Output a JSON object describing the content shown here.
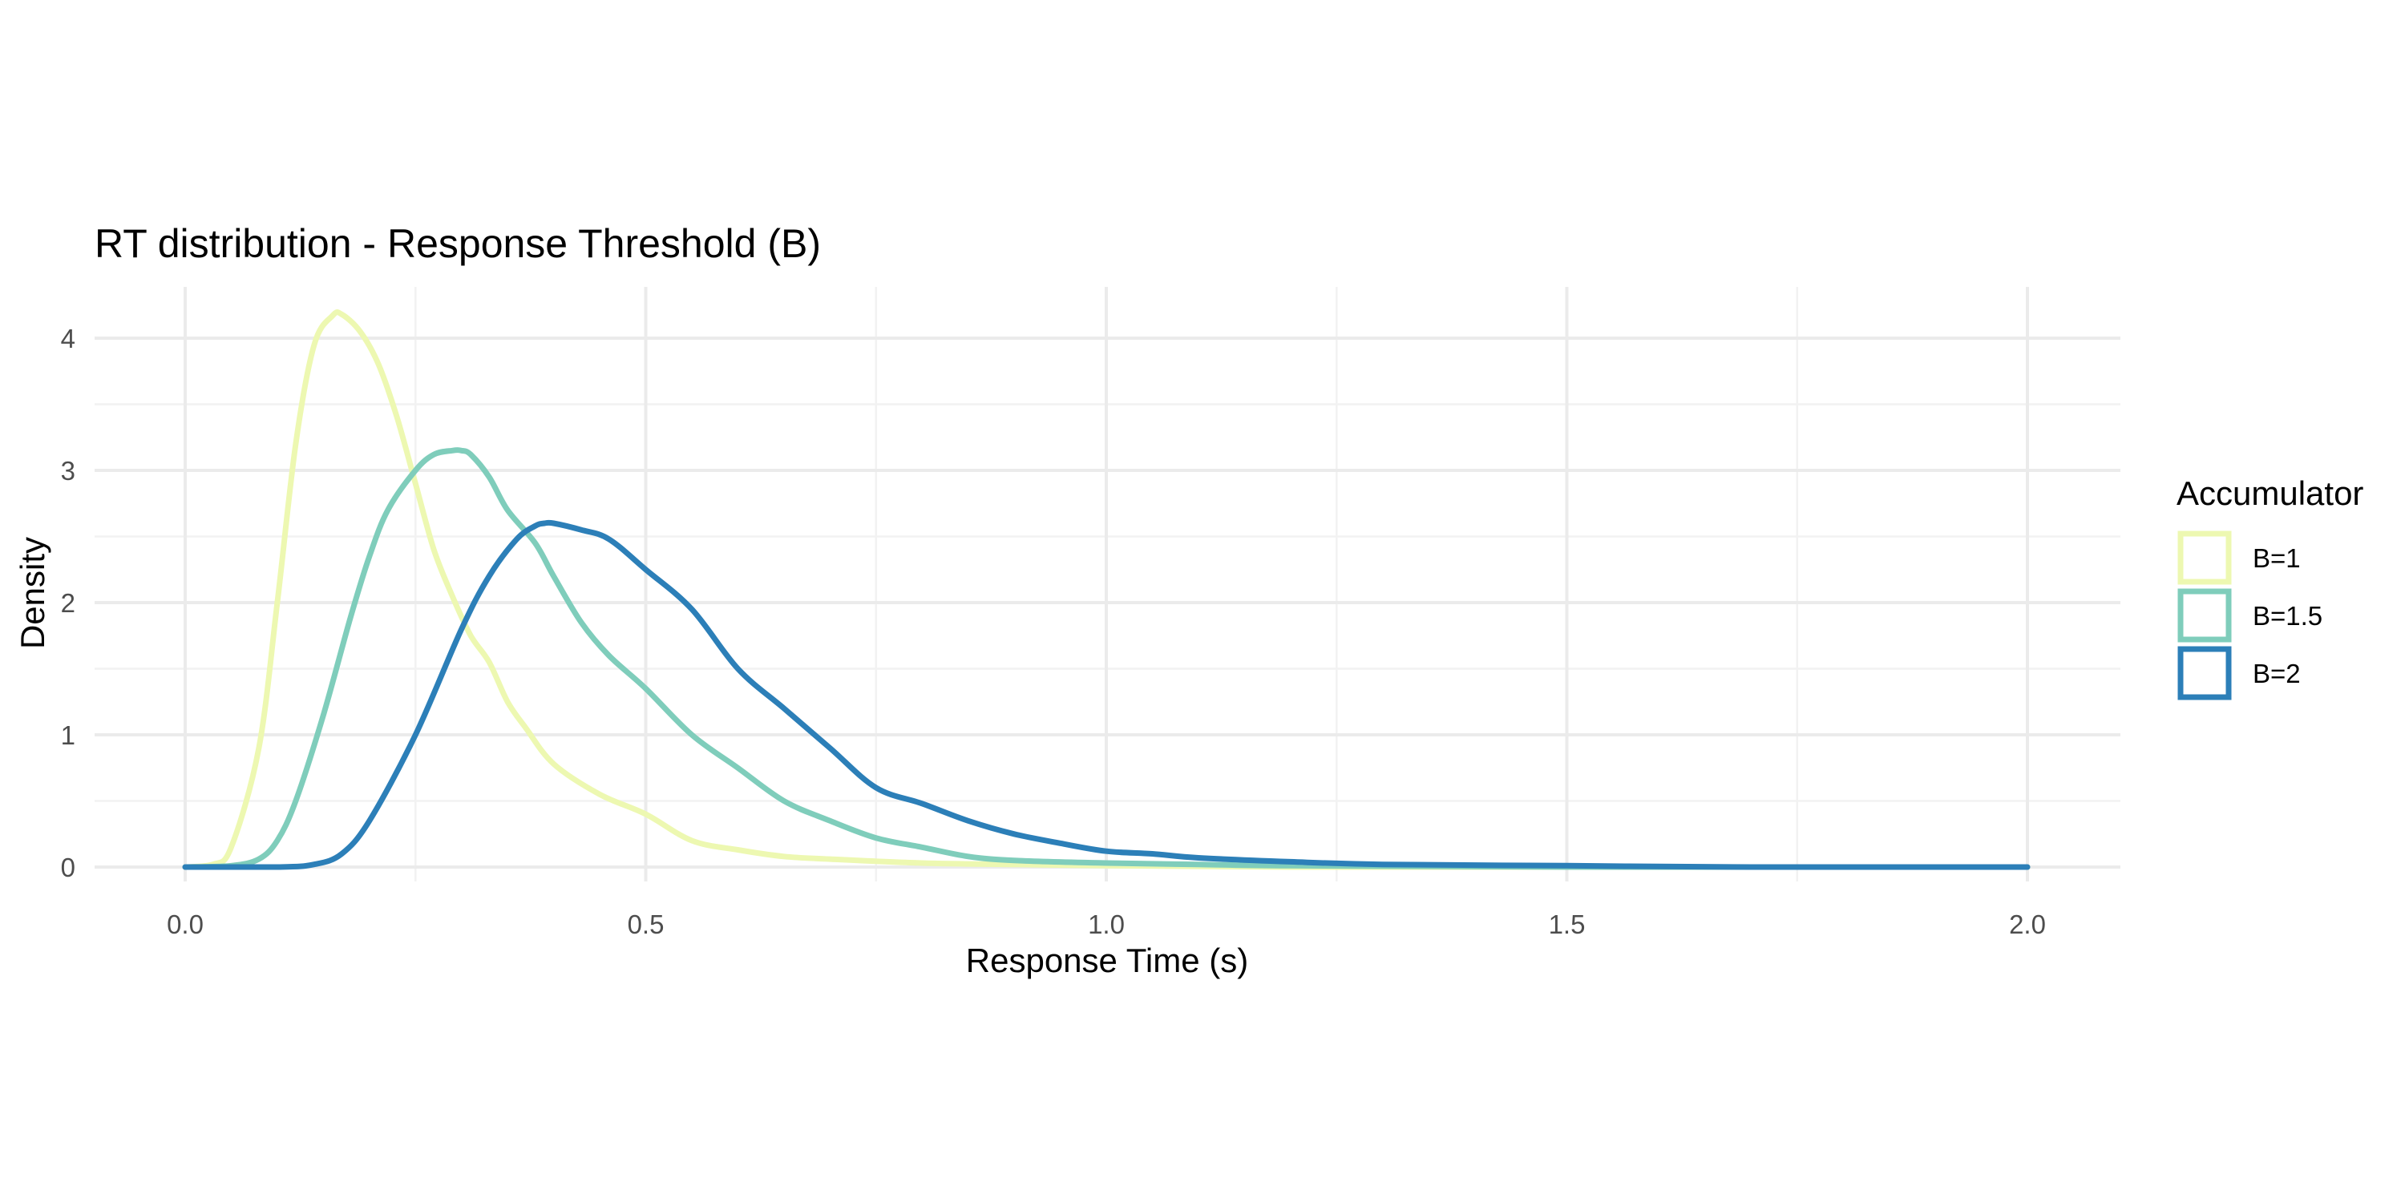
{
  "chart_data": {
    "type": "line",
    "title": "RT distribution - Response Threshold (B)",
    "xlabel": "Response Time (s)",
    "ylabel": "Density",
    "xlim": [
      0,
      2.0
    ],
    "ylim": [
      0,
      4.2
    ],
    "x_ticks": [
      "0.0",
      "0.5",
      "1.0",
      "1.5",
      "2.0"
    ],
    "y_ticks": [
      "0",
      "1",
      "2",
      "3",
      "4"
    ],
    "grid": true,
    "legend": {
      "title": "Accumulator",
      "position": "right"
    },
    "series": [
      {
        "name": "B=1",
        "color": "#edf8b1",
        "x": [
          0.0,
          0.03,
          0.05,
          0.08,
          0.1,
          0.12,
          0.14,
          0.16,
          0.17,
          0.19,
          0.21,
          0.23,
          0.25,
          0.27,
          0.29,
          0.31,
          0.33,
          0.35,
          0.37,
          0.4,
          0.45,
          0.5,
          0.55,
          0.6,
          0.65,
          0.7,
          0.8,
          0.9,
          1.0,
          1.2,
          1.5,
          2.0
        ],
        "y": [
          0.0,
          0.02,
          0.15,
          0.9,
          2.0,
          3.2,
          3.95,
          4.17,
          4.18,
          4.05,
          3.8,
          3.4,
          2.9,
          2.4,
          2.05,
          1.75,
          1.55,
          1.25,
          1.05,
          0.78,
          0.55,
          0.4,
          0.2,
          0.13,
          0.08,
          0.06,
          0.03,
          0.02,
          0.01,
          0.0,
          0.0,
          0.0
        ]
      },
      {
        "name": "B=1.5",
        "color": "#7fcdbb",
        "x": [
          0.0,
          0.05,
          0.08,
          0.1,
          0.12,
          0.15,
          0.18,
          0.2,
          0.22,
          0.25,
          0.27,
          0.29,
          0.3,
          0.31,
          0.33,
          0.35,
          0.38,
          0.4,
          0.43,
          0.46,
          0.5,
          0.55,
          0.6,
          0.65,
          0.7,
          0.75,
          0.8,
          0.85,
          0.9,
          1.0,
          1.1,
          1.2,
          1.5,
          2.0
        ],
        "y": [
          0.0,
          0.01,
          0.06,
          0.2,
          0.5,
          1.15,
          1.9,
          2.35,
          2.7,
          3.0,
          3.12,
          3.15,
          3.15,
          3.12,
          2.95,
          2.7,
          2.45,
          2.2,
          1.85,
          1.6,
          1.35,
          1.0,
          0.75,
          0.5,
          0.35,
          0.22,
          0.15,
          0.08,
          0.05,
          0.03,
          0.02,
          0.01,
          0.0,
          0.0
        ]
      },
      {
        "name": "B=2",
        "color": "#2c7fb8",
        "x": [
          0.0,
          0.1,
          0.14,
          0.17,
          0.2,
          0.25,
          0.3,
          0.33,
          0.36,
          0.38,
          0.39,
          0.4,
          0.43,
          0.46,
          0.5,
          0.55,
          0.6,
          0.65,
          0.7,
          0.75,
          0.8,
          0.85,
          0.9,
          0.95,
          1.0,
          1.05,
          1.1,
          1.2,
          1.3,
          1.5,
          1.7,
          2.0
        ],
        "y": [
          0.0,
          0.0,
          0.02,
          0.1,
          0.35,
          1.0,
          1.8,
          2.2,
          2.48,
          2.58,
          2.6,
          2.6,
          2.55,
          2.48,
          2.25,
          1.95,
          1.5,
          1.2,
          0.9,
          0.6,
          0.48,
          0.35,
          0.25,
          0.18,
          0.12,
          0.1,
          0.07,
          0.04,
          0.02,
          0.01,
          0.0,
          0.0
        ]
      }
    ]
  }
}
